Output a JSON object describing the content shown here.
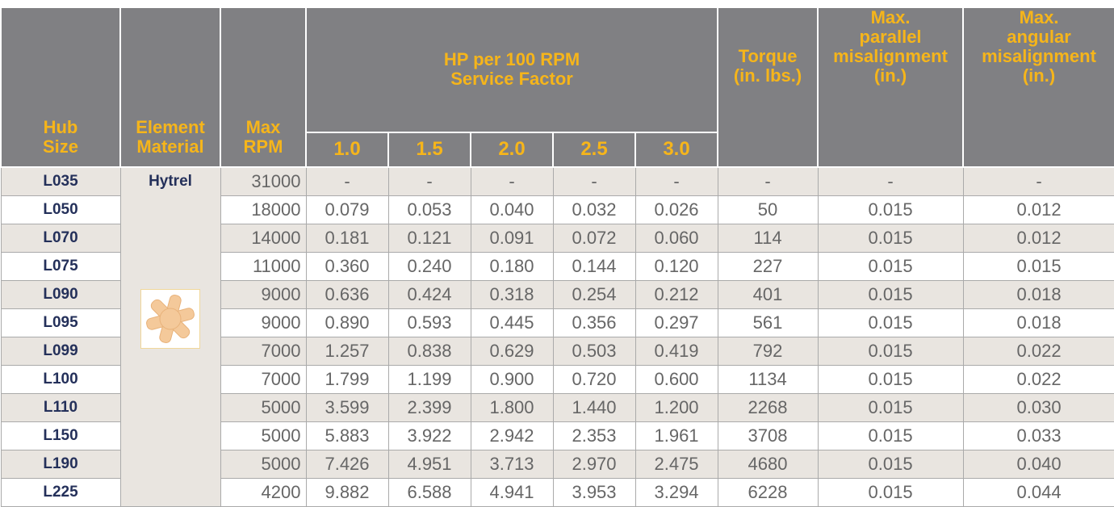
{
  "header": {
    "hub_size": [
      "Hub",
      "Size"
    ],
    "element_material": [
      "Element",
      "Material"
    ],
    "max_rpm": [
      "Max",
      "RPM"
    ],
    "hp": [
      "HP per 100 RPM",
      "Service Factor"
    ],
    "service_factors": [
      "1.0",
      "1.5",
      "2.0",
      "2.5",
      "3.0"
    ],
    "torque": [
      "Torque",
      "(in. lbs.)"
    ],
    "parallel": [
      "Max.",
      "parallel",
      "misalignment",
      "(in.)"
    ],
    "angular": [
      "Max.",
      "angular",
      "misalignment",
      "(in.)"
    ]
  },
  "element_material": "Hytrel",
  "rows": [
    [
      "L035",
      "31000",
      "-",
      "-",
      "-",
      "-",
      "-",
      "-",
      "-",
      "-"
    ],
    [
      "L050",
      "18000",
      "0.079",
      "0.053",
      "0.040",
      "0.032",
      "0.026",
      "50",
      "0.015",
      "0.012"
    ],
    [
      "L070",
      "14000",
      "0.181",
      "0.121",
      "0.091",
      "0.072",
      "0.060",
      "114",
      "0.015",
      "0.012"
    ],
    [
      "L075",
      "11000",
      "0.360",
      "0.240",
      "0.180",
      "0.144",
      "0.120",
      "227",
      "0.015",
      "0.015"
    ],
    [
      "L090",
      "9000",
      "0.636",
      "0.424",
      "0.318",
      "0.254",
      "0.212",
      "401",
      "0.015",
      "0.018"
    ],
    [
      "L095",
      "9000",
      "0.890",
      "0.593",
      "0.445",
      "0.356",
      "0.297",
      "561",
      "0.015",
      "0.018"
    ],
    [
      "L099",
      "7000",
      "1.257",
      "0.838",
      "0.629",
      "0.503",
      "0.419",
      "792",
      "0.015",
      "0.022"
    ],
    [
      "L100",
      "7000",
      "1.799",
      "1.199",
      "0.900",
      "0.720",
      "0.600",
      "1134",
      "0.015",
      "0.022"
    ],
    [
      "L110",
      "5000",
      "3.599",
      "2.399",
      "1.800",
      "1.440",
      "1.200",
      "2268",
      "0.015",
      "0.030"
    ],
    [
      "L150",
      "5000",
      "5.883",
      "3.922",
      "2.942",
      "2.353",
      "1.961",
      "3708",
      "0.015",
      "0.033"
    ],
    [
      "L190",
      "5000",
      "7.426",
      "4.951",
      "3.713",
      "2.970",
      "2.475",
      "4680",
      "0.015",
      "0.040"
    ],
    [
      "L225",
      "4200",
      "9.882",
      "6.588",
      "4.941",
      "3.953",
      "3.294",
      "6228",
      "0.015",
      "0.044"
    ]
  ]
}
